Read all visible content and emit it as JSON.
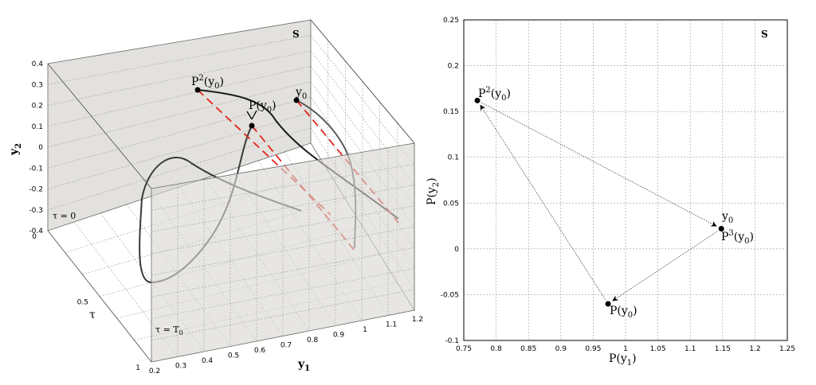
{
  "left_panel": {
    "section_label": "S",
    "axis_y1": "y",
    "axis_y1_sub": "1",
    "axis_y2": "y",
    "axis_y2_sub": "2",
    "axis_tau": "τ",
    "tau_zero_label": "τ = 0",
    "tau_T0_label": "τ = T",
    "tau_T0_sub": "0",
    "y1_ticks": [
      "0.2",
      "0.3",
      "0.4",
      "0.5",
      "0.6",
      "0.7",
      "0.8",
      "0.9",
      "1",
      "1.1",
      "1.2"
    ],
    "y2_ticks": [
      "0.4",
      "0.3",
      "0.2",
      "0.1",
      "0",
      "-0.1",
      "-0.2",
      "-0.3",
      "-0.4"
    ],
    "tau_ticks": [
      "0",
      "0.5",
      "1"
    ],
    "point_P2": "P",
    "point_P2_sup": "2",
    "point_P2_arg": "(y",
    "point_P2_arg_sub": "0",
    "point_P2_close": ")",
    "point_P": "P(y",
    "point_P_sub": "0",
    "point_P_close": ")",
    "point_y0": "y",
    "point_y0_sub": "0"
  },
  "chart_data": {
    "type": "scatter",
    "title": "",
    "section_label": "S",
    "xlabel": "P(y1)",
    "ylabel": "P(y2)",
    "xlim": [
      0.75,
      1.25
    ],
    "ylim": [
      -0.1,
      0.25
    ],
    "xticks": [
      0.75,
      0.8,
      0.85,
      0.9,
      0.95,
      1,
      1.05,
      1.1,
      1.15,
      1.2,
      1.25
    ],
    "yticks": [
      -0.1,
      -0.05,
      0,
      0.05,
      0.1,
      0.15,
      0.2,
      0.25
    ],
    "grid": true,
    "points": [
      {
        "name": "y0 = P3(y0)",
        "x": 1.148,
        "y": 0.022
      },
      {
        "name": "P(y0)",
        "x": 0.973,
        "y": -0.06
      },
      {
        "name": "P2(y0)",
        "x": 0.771,
        "y": 0.162
      }
    ],
    "arrows": [
      {
        "from": 0,
        "to": 1
      },
      {
        "from": 1,
        "to": 2
      },
      {
        "from": 2,
        "to": 0
      }
    ]
  },
  "right_labels": {
    "xlabel_main": "P(y",
    "xlabel_sub": "1",
    "xlabel_close": ")",
    "ylabel_main": "P(y",
    "ylabel_sub": "2",
    "ylabel_close": ")",
    "y0_main": "y",
    "y0_sub": "0",
    "P3_main": "P",
    "P3_sup": "3",
    "P3_arg": "(y",
    "P3_sub": "0",
    "P3_close": ")",
    "P_main": "P(y",
    "P_sub": "0",
    "P_close": ")",
    "P2_main": "P",
    "P2_sup": "2",
    "P2_arg": "(y",
    "P2_sub": "0",
    "P2_close": ")"
  }
}
